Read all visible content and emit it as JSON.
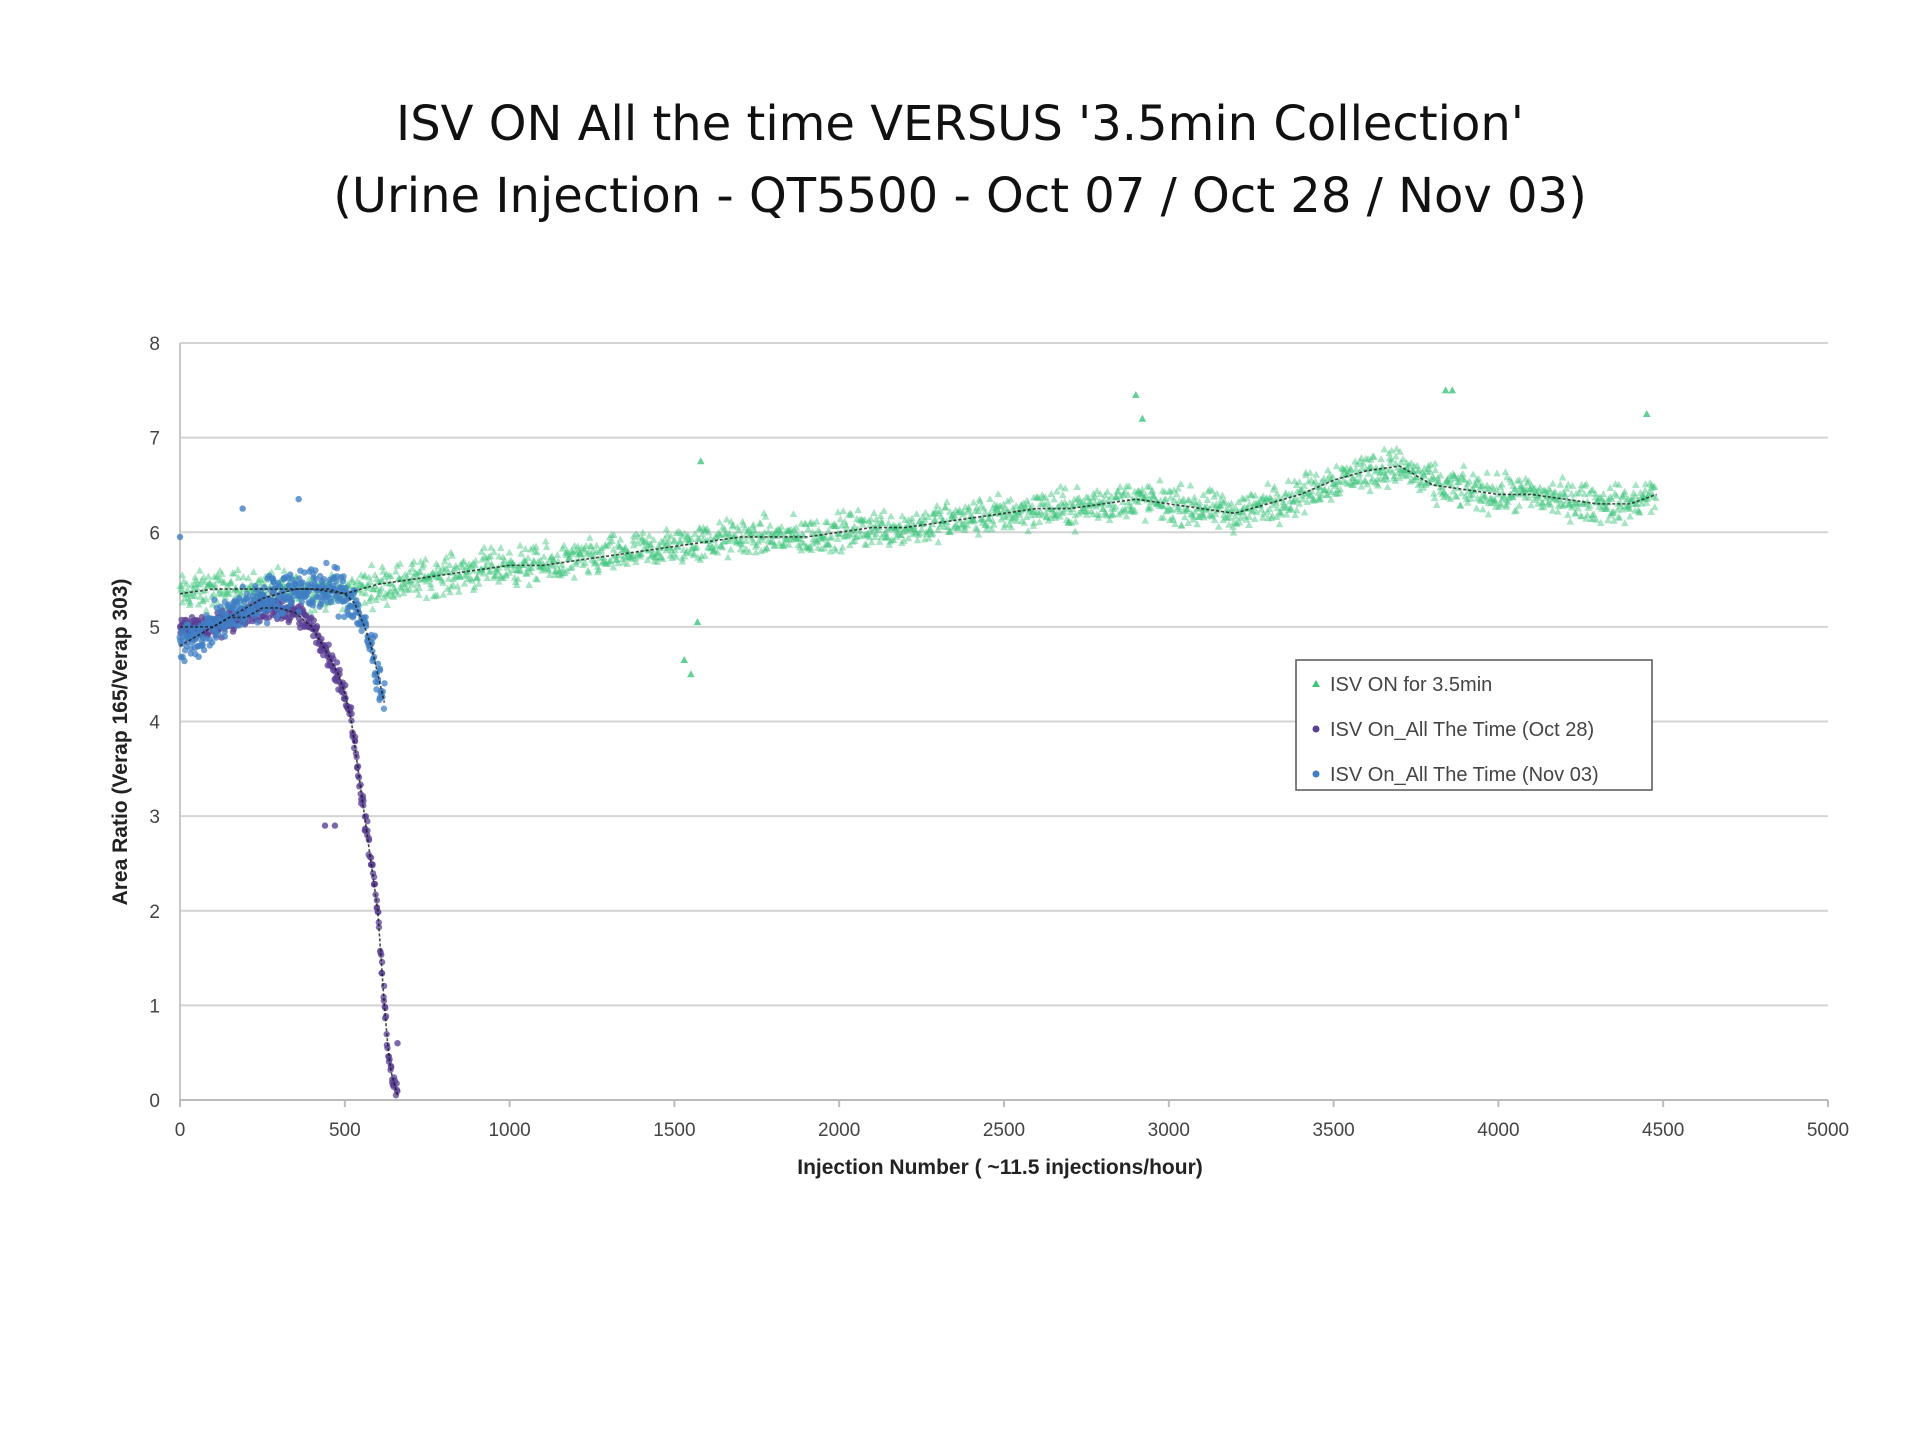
{
  "chart_data": {
    "type": "scatter",
    "title": "ISV ON All the time VERSUS '3.5min Collection'",
    "subtitle": "(Urine Injection - QT5500 - Oct 07 / Oct 28 / Nov 03)",
    "xlabel": "Injection Number ( ~11.5 injections/hour)",
    "ylabel": "Area Ratio (Verap 165/Verap 303)",
    "xlim": [
      0,
      5000
    ],
    "ylim": [
      0,
      8
    ],
    "xticks": [
      0,
      500,
      1000,
      1500,
      2000,
      2500,
      3000,
      3500,
      4000,
      4500,
      5000
    ],
    "yticks": [
      0,
      1,
      2,
      3,
      4,
      5,
      6,
      7,
      8
    ],
    "grid": "horizontal",
    "legend_position": "center-right",
    "series": [
      {
        "name": "ISV ON for 3.5min",
        "color": "#3cc47a",
        "marker": "triangle",
        "points": [
          [
            0,
            5.35
          ],
          [
            100,
            5.4
          ],
          [
            200,
            5.4
          ],
          [
            300,
            5.4
          ],
          [
            400,
            5.4
          ],
          [
            500,
            5.35
          ],
          [
            600,
            5.45
          ],
          [
            700,
            5.5
          ],
          [
            800,
            5.55
          ],
          [
            900,
            5.6
          ],
          [
            1000,
            5.65
          ],
          [
            1100,
            5.65
          ],
          [
            1200,
            5.7
          ],
          [
            1300,
            5.75
          ],
          [
            1400,
            5.8
          ],
          [
            1500,
            5.85
          ],
          [
            1600,
            5.9
          ],
          [
            1700,
            5.95
          ],
          [
            1800,
            5.95
          ],
          [
            1900,
            5.95
          ],
          [
            2000,
            6.0
          ],
          [
            2100,
            6.05
          ],
          [
            2200,
            6.05
          ],
          [
            2300,
            6.1
          ],
          [
            2400,
            6.15
          ],
          [
            2500,
            6.2
          ],
          [
            2600,
            6.25
          ],
          [
            2700,
            6.25
          ],
          [
            2800,
            6.3
          ],
          [
            2900,
            6.35
          ],
          [
            3000,
            6.3
          ],
          [
            3100,
            6.25
          ],
          [
            3200,
            6.2
          ],
          [
            3300,
            6.3
          ],
          [
            3400,
            6.4
          ],
          [
            3500,
            6.55
          ],
          [
            3600,
            6.65
          ],
          [
            3700,
            6.7
          ],
          [
            3800,
            6.5
          ],
          [
            3900,
            6.45
          ],
          [
            4000,
            6.4
          ],
          [
            4100,
            6.4
          ],
          [
            4200,
            6.35
          ],
          [
            4300,
            6.3
          ],
          [
            4400,
            6.3
          ],
          [
            4480,
            6.4
          ]
        ],
        "outliers": [
          [
            1530,
            4.65
          ],
          [
            1550,
            4.5
          ],
          [
            1570,
            5.05
          ],
          [
            1580,
            6.75
          ],
          [
            2900,
            7.45
          ],
          [
            2920,
            7.2
          ],
          [
            3840,
            7.5
          ],
          [
            3860,
            7.5
          ],
          [
            4450,
            7.25
          ]
        ]
      },
      {
        "name": "ISV On_All The Time (Oct 28)",
        "color": "#5b3f96",
        "marker": "circle",
        "points": [
          [
            0,
            5.0
          ],
          [
            50,
            5.0
          ],
          [
            100,
            5.0
          ],
          [
            150,
            5.1
          ],
          [
            200,
            5.1
          ],
          [
            250,
            5.2
          ],
          [
            300,
            5.2
          ],
          [
            350,
            5.15
          ],
          [
            400,
            5.0
          ],
          [
            450,
            4.7
          ],
          [
            480,
            4.5
          ],
          [
            500,
            4.3
          ],
          [
            520,
            4.0
          ],
          [
            540,
            3.5
          ],
          [
            560,
            3.0
          ],
          [
            580,
            2.5
          ],
          [
            600,
            2.0
          ],
          [
            610,
            1.5
          ],
          [
            620,
            1.0
          ],
          [
            630,
            0.6
          ],
          [
            640,
            0.3
          ],
          [
            660,
            0.05
          ]
        ],
        "outliers": [
          [
            440,
            2.9
          ],
          [
            470,
            2.9
          ],
          [
            660,
            0.6
          ]
        ]
      },
      {
        "name": "ISV On_All The Time (Nov 03)",
        "color": "#3f7fc4",
        "marker": "circle",
        "points": [
          [
            0,
            4.8
          ],
          [
            50,
            4.9
          ],
          [
            100,
            5.0
          ],
          [
            150,
            5.1
          ],
          [
            200,
            5.2
          ],
          [
            250,
            5.3
          ],
          [
            300,
            5.35
          ],
          [
            350,
            5.4
          ],
          [
            400,
            5.4
          ],
          [
            450,
            5.4
          ],
          [
            500,
            5.35
          ],
          [
            530,
            5.25
          ],
          [
            560,
            5.0
          ],
          [
            580,
            4.8
          ],
          [
            600,
            4.5
          ],
          [
            620,
            4.2
          ]
        ],
        "outliers": [
          [
            0,
            5.95
          ],
          [
            190,
            6.25
          ],
          [
            360,
            6.35
          ]
        ]
      }
    ]
  }
}
